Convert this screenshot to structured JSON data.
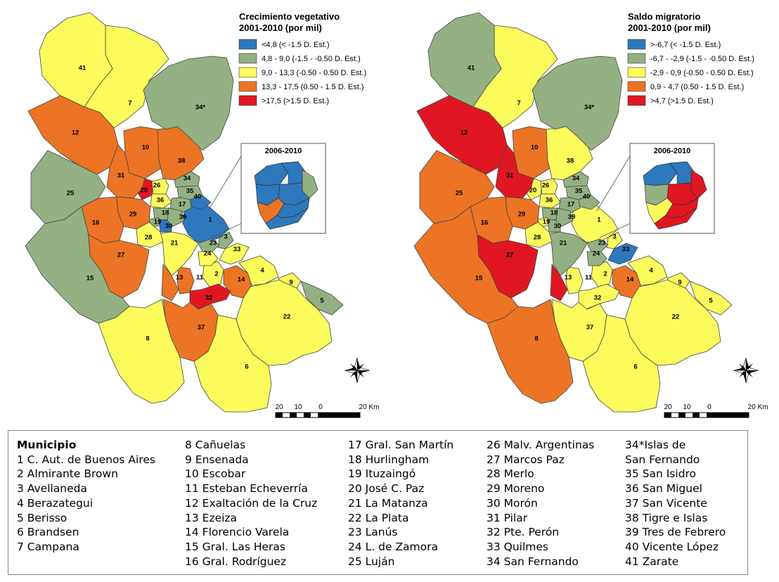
{
  "maps": [
    {
      "id": "left",
      "legend_title_line1": "Crecimiento vegetativo",
      "legend_title_line2": "2001-2010 (por mil)",
      "classes": [
        {
          "label": "<4,8 (< -1.5 D. Est.)",
          "color": "#2e78bd"
        },
        {
          "label": "4,8 - 9,0 (-1.5 - -0.50 D. Est.)",
          "color": "#93b182"
        },
        {
          "label": "9,0 - 13,3 (-0.50 - 0.50 D. Est.)",
          "color": "#fcfb5c"
        },
        {
          "label": "13,3 - 17,5 (0.50 - 1.5 D. Est.)",
          "color": "#ec7424"
        },
        {
          "label": ">17,5 (>1.5 D. Est.)",
          "color": "#e01722"
        }
      ],
      "inset_title": "2006-2010",
      "scale_labels": [
        "20",
        "10",
        "0",
        "20 Km"
      ],
      "values": {
        "1": 0,
        "2": 2,
        "3": 1,
        "4": 2,
        "5": 1,
        "6": 2,
        "7": 2,
        "8": 2,
        "9": 2,
        "10": 3,
        "11": 3,
        "12": 3,
        "13": 3,
        "14": 3,
        "15": 1,
        "16": 3,
        "17": 1,
        "18": 1,
        "19": 1,
        "20": 4,
        "21": 2,
        "22": 2,
        "23": 1,
        "24": 2,
        "25": 1,
        "26": 2,
        "27": 3,
        "28": 2,
        "29": 3,
        "30": 0,
        "31": 3,
        "32": 4,
        "33": 2,
        "34": 1,
        "35": 1,
        "36": 2,
        "37": 3,
        "38": 3,
        "39": 1,
        "40": 0,
        "41": 2
      }
    },
    {
      "id": "right",
      "legend_title_line1": "Saldo migratorio",
      "legend_title_line2": "2001-2010 (por mil)",
      "classes": [
        {
          "label": ">-6,7 (< -1.5 D. Est.)",
          "color": "#2e78bd"
        },
        {
          "label": "-6,7 - -2,9 (-1.5 - -0.50 D. Est.)",
          "color": "#93b182"
        },
        {
          "label": "-2,9 - 0,9 (-0.50 - 0.50 D. Est.)",
          "color": "#fcfb5c"
        },
        {
          "label": "0,9 - 4,7 (0.50 - 1.5 D. Est.)",
          "color": "#ec7424"
        },
        {
          "label": ">4,7 (>1.5 D. Est.)",
          "color": "#e01722"
        }
      ],
      "inset_title": "2006-2010",
      "scale_labels": [
        "20",
        "10",
        "0",
        "20 Km"
      ],
      "values": {
        "1": 2,
        "2": 2,
        "3": 2,
        "4": 2,
        "5": 2,
        "6": 2,
        "7": 2,
        "8": 3,
        "9": 2,
        "10": 3,
        "11": 2,
        "12": 4,
        "13": 4,
        "14": 3,
        "15": 3,
        "16": 3,
        "17": 1,
        "18": 1,
        "19": 2,
        "20": 2,
        "21": 1,
        "22": 2,
        "23": 1,
        "24": 1,
        "25": 3,
        "26": 2,
        "27": 4,
        "28": 2,
        "29": 3,
        "30": 1,
        "31": 4,
        "32": 2,
        "33": 0,
        "34": 1,
        "35": 1,
        "36": 2,
        "37": 2,
        "38": 2,
        "39": 1,
        "40": 1,
        "41": 1
      }
    }
  ],
  "municipio": {
    "title": "Municipio",
    "items": [
      "1 C. Aut. de Buenos Aires",
      "2 Almirante Brown",
      "3 Avellaneda",
      "4 Berazategui",
      "5 Berisso",
      "6 Brandsen",
      "7 Campana",
      "8 Cañuelas",
      "9 Ensenada",
      "10 Escobar",
      "11 Esteban Echeverría",
      "12 Exaltación de la Cruz",
      "13 Ezeiza",
      "14 Florencio Varela",
      "15 Gral. Las Heras",
      "16 Gral. Rodríguez",
      "17 Gral. San Martín",
      "18 Hurlingham",
      "19 Ituzaingó",
      "20 José C. Paz",
      "21 La Matanza",
      "22 La Plata",
      "23 Lanús",
      "24 L. de Zamora",
      "25 Luján",
      "26 Malv. Argentinas",
      "27 Marcos Paz",
      "28 Merlo",
      "29 Moreno",
      "30 Morón",
      "31 Pilar",
      "32 Pte. Perón",
      "33 Quilmes",
      "34 San Fernando",
      "34*Islas de",
      "San Fernando",
      "35 San Isidro",
      "36 San Miguel",
      "37 San Vicente",
      "38 Tigre e Islas",
      "39 Tres de Febrero",
      "40 Vicente López",
      "41 Zarate"
    ]
  },
  "region_labels": {
    "1": "1",
    "2": "2",
    "3": "3",
    "4": "4",
    "5": "5",
    "6": "6",
    "7": "7",
    "8": "8",
    "9": "9",
    "10": "10",
    "11": "11",
    "12": "12",
    "13": "13",
    "14": "14",
    "15": "15",
    "16": "16",
    "17": "17",
    "18": "18",
    "19": "19",
    "20": "20",
    "21": "21",
    "22": "22",
    "23": "23",
    "24": "24",
    "25": "25",
    "26": "26",
    "27": "27",
    "28": "28",
    "29": "29",
    "30": "30",
    "31": "31",
    "32": "32",
    "33": "33",
    "34": "34",
    "34s": "34*",
    "35": "35",
    "36": "36",
    "37": "37",
    "38": "38",
    "39": "39",
    "40": "40",
    "41": "41"
  }
}
